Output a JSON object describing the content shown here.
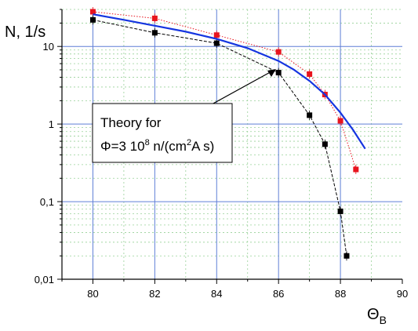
{
  "chart_data": {
    "type": "scatter",
    "ylabel": "N, 1/s",
    "xlabel_main": "Θ",
    "xlabel_sub": "B",
    "xlim": [
      79,
      90
    ],
    "ylim": [
      0.01,
      30
    ],
    "y_scale": "log",
    "x_ticks": [
      80,
      82,
      84,
      86,
      88,
      90
    ],
    "x_tick_labels": [
      "80",
      "82",
      "84",
      "86",
      "88",
      "90"
    ],
    "y_ticks": [
      0.01,
      0.1,
      1,
      10
    ],
    "y_tick_labels": [
      "0,01",
      "0,1",
      "1",
      "10"
    ],
    "grid": true,
    "annotation": {
      "line1": "Theory for",
      "line2_prefix": "Φ=3 10",
      "line2_exp": "8",
      "line2_mid": " n/(cm",
      "line2_exp2": "2",
      "line2_suffix": "A s)"
    },
    "series": [
      {
        "color": "#e8141e",
        "marker": "square",
        "line": "dotted",
        "x": [
          80,
          82,
          84,
          86,
          87,
          87.5,
          88,
          88.5
        ],
        "y": [
          28,
          23,
          14,
          8.5,
          4.4,
          2.4,
          1.1,
          0.26
        ]
      },
      {
        "color": "#000000",
        "marker": "square",
        "line": "dashed",
        "x": [
          80,
          82,
          84,
          86,
          87,
          87.5,
          88,
          88.2
        ],
        "y": [
          22,
          15,
          11,
          4.6,
          1.3,
          0.55,
          0.075,
          0.02
        ]
      },
      {
        "color": "#1535e0",
        "marker": "none",
        "line": "solid",
        "x": [
          80,
          81,
          82,
          83,
          84,
          85,
          86,
          86.5,
          87,
          87.5,
          88,
          88.4,
          88.8
        ],
        "y": [
          26,
          22,
          18.5,
          15.5,
          12.5,
          9.5,
          6.5,
          5.0,
          3.6,
          2.4,
          1.4,
          0.85,
          0.48
        ]
      }
    ],
    "colors": {
      "grid": "#5f7fd6",
      "grid_minor": "#98d198",
      "axis": "#000000"
    }
  }
}
